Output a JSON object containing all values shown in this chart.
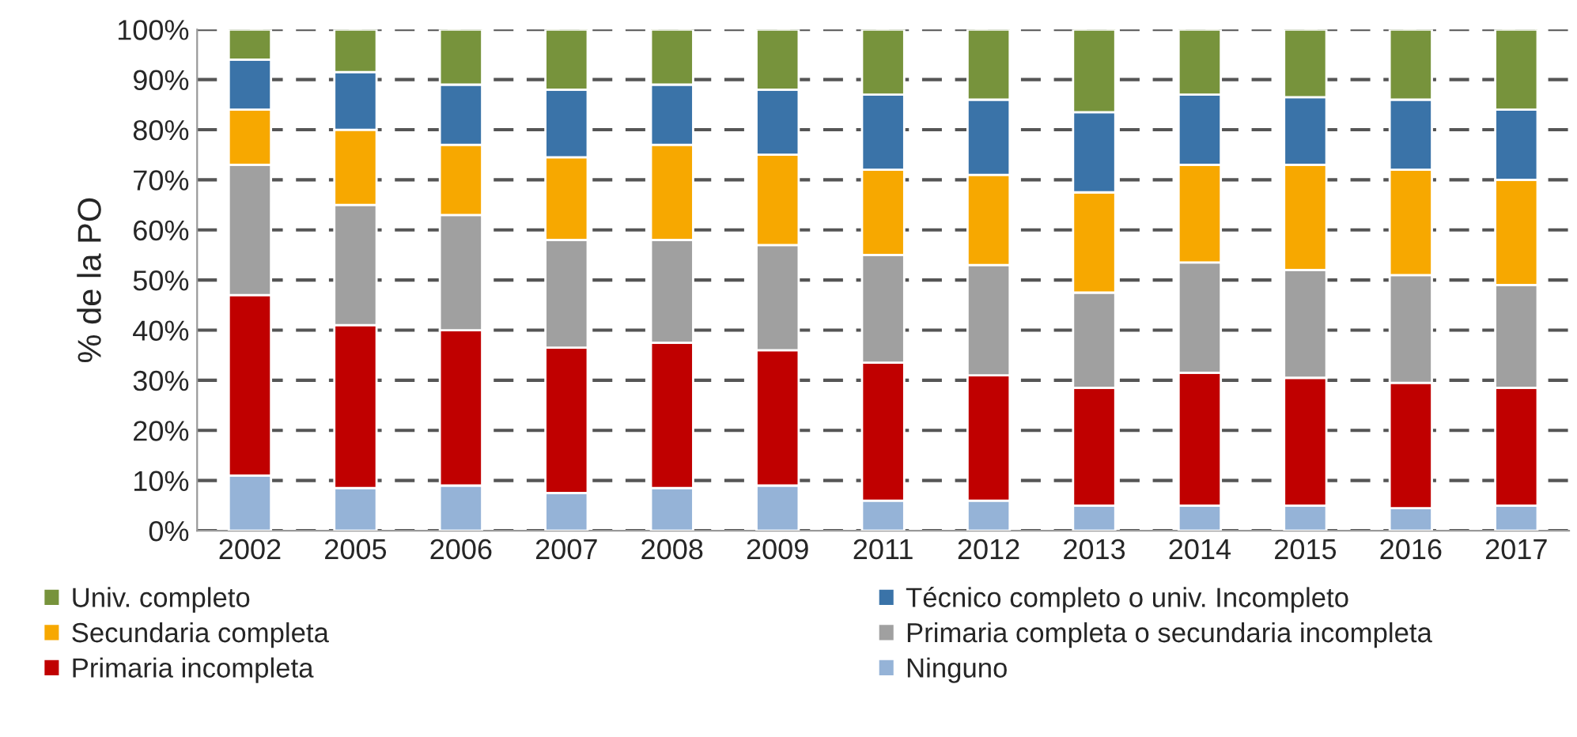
{
  "chart_data": {
    "type": "bar",
    "stacked": true,
    "ylabel": "% de la PO",
    "categories": [
      "2002",
      "2005",
      "2006",
      "2007",
      "2008",
      "2009",
      "2011",
      "2012",
      "2013",
      "2014",
      "2015",
      "2016",
      "2017"
    ],
    "series": [
      {
        "name": "Ninguno",
        "color": "#95b3d7",
        "values": [
          11,
          8.5,
          9,
          7.5,
          8.5,
          9,
          6,
          6,
          5,
          5,
          5,
          4.5,
          5
        ]
      },
      {
        "name": "Primaria incompleta",
        "color": "#c00000",
        "values": [
          36,
          32.5,
          31,
          29,
          29,
          27,
          27.5,
          25,
          23.5,
          26.5,
          25.5,
          25,
          23.5
        ]
      },
      {
        "name": "Primaria completa o secundaria incompleta",
        "color": "#a0a0a0",
        "values": [
          26,
          24,
          23,
          21.5,
          20.5,
          21,
          21.5,
          22,
          19,
          22,
          21.5,
          21.5,
          20.5
        ]
      },
      {
        "name": "Secundaria completa",
        "color": "#f7a800",
        "values": [
          11,
          15,
          14,
          16.5,
          19,
          18,
          17,
          18,
          20,
          19.5,
          21,
          21,
          21
        ]
      },
      {
        "name": "Técnico completo o univ. Incompleto",
        "color": "#3a73a8",
        "values": [
          10,
          11.5,
          12,
          13.5,
          12,
          13,
          15,
          15,
          16,
          14,
          13.5,
          14,
          14
        ]
      },
      {
        "name": "Univ. completo",
        "color": "#77933c",
        "values": [
          6,
          8.5,
          11,
          12,
          11,
          12,
          13,
          14,
          16.5,
          13,
          13.5,
          14,
          16
        ]
      }
    ],
    "ylim": [
      0,
      100
    ],
    "yticks": [
      {
        "value": 0,
        "label": "0%"
      },
      {
        "value": 10,
        "label": "10%"
      },
      {
        "value": 20,
        "label": "20%"
      },
      {
        "value": 30,
        "label": "30%"
      },
      {
        "value": 40,
        "label": "40%"
      },
      {
        "value": 50,
        "label": "50%"
      },
      {
        "value": 60,
        "label": "60%"
      },
      {
        "value": 70,
        "label": "70%"
      },
      {
        "value": 80,
        "label": "80%"
      },
      {
        "value": 90,
        "label": "90%"
      },
      {
        "value": 100,
        "label": "100%"
      }
    ],
    "grid": "y",
    "legend": "bottom"
  }
}
